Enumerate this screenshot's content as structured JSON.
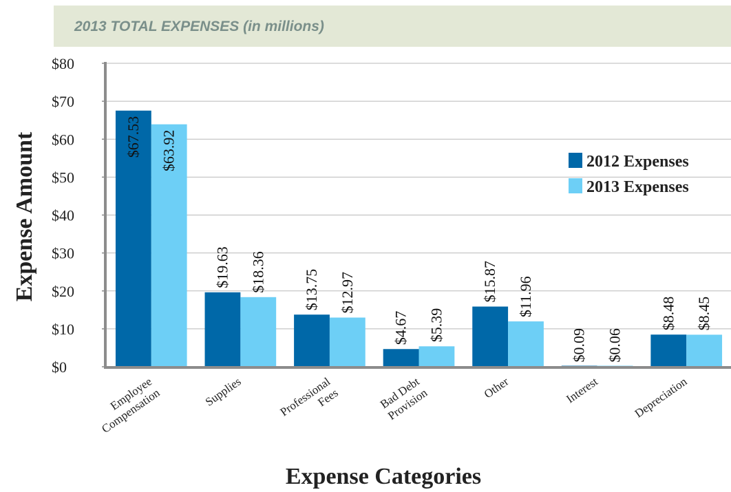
{
  "chart_data": {
    "type": "bar",
    "title": "2013 TOTAL EXPENSES (in millions)",
    "xlabel": "Expense Categories",
    "ylabel": "Expense Amount",
    "ylim": [
      0,
      80
    ],
    "yticks": [
      0,
      10,
      20,
      30,
      40,
      50,
      60,
      70,
      80
    ],
    "ytick_labels": [
      "$0",
      "$10",
      "$20",
      "$30",
      "$40",
      "$50",
      "$60",
      "$70",
      "$80"
    ],
    "grid": true,
    "legend": "right",
    "categories": [
      [
        "Employee",
        "Compensation"
      ],
      [
        "Supplies"
      ],
      [
        "Professional",
        "Fees"
      ],
      [
        "Bad Debt",
        "Provision"
      ],
      [
        "Other"
      ],
      [
        "Interest"
      ],
      [
        "Depreciation"
      ]
    ],
    "series": [
      {
        "name": "2012 Expenses",
        "color": "#0068a8",
        "values": [
          67.53,
          19.63,
          13.75,
          4.67,
          15.87,
          0.09,
          8.48
        ],
        "labels": [
          "$67.53",
          "$19.63",
          "$13.75",
          "$4.67",
          "$15.87",
          "$0.09",
          "$8.48"
        ]
      },
      {
        "name": "2013 Expenses",
        "color": "#6dcff6",
        "values": [
          63.92,
          18.36,
          12.97,
          5.39,
          11.96,
          0.06,
          8.45
        ],
        "labels": [
          "$63.92",
          "$18.36",
          "$12.97",
          "$5.39",
          "$11.96",
          "$0.06",
          "$8.45"
        ]
      }
    ]
  }
}
